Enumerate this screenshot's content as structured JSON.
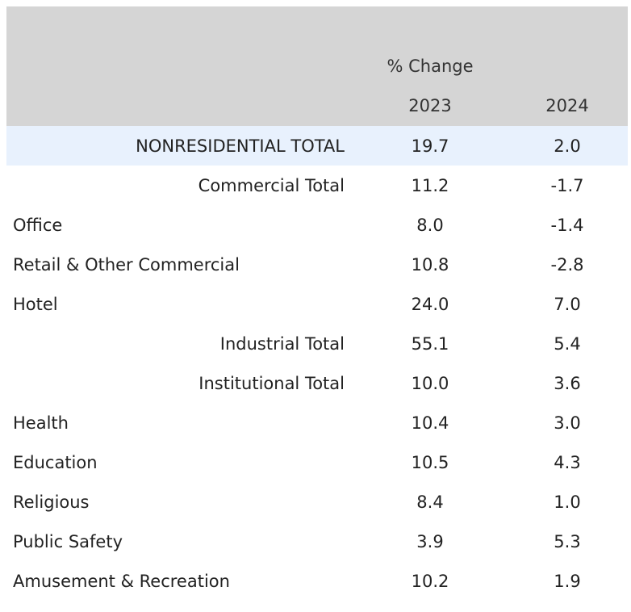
{
  "chart_data": {
    "type": "table",
    "column_group": "% Change",
    "columns": [
      "2023",
      "2024"
    ],
    "rows": [
      {
        "label": "NONRESIDENTIAL TOTAL",
        "values": [
          "19.7",
          "2.0"
        ],
        "style": "total-highlight"
      },
      {
        "label": "Commercial Total",
        "values": [
          "11.2",
          "-1.7"
        ],
        "style": "subtotal"
      },
      {
        "label": "Office",
        "values": [
          "8.0",
          "-1.4"
        ],
        "style": "item"
      },
      {
        "label": "Retail & Other Commercial",
        "values": [
          "10.8",
          "-2.8"
        ],
        "style": "item"
      },
      {
        "label": "Hotel",
        "values": [
          "24.0",
          "7.0"
        ],
        "style": "item"
      },
      {
        "label": "Industrial Total",
        "values": [
          "55.1",
          "5.4"
        ],
        "style": "subtotal"
      },
      {
        "label": "Institutional Total",
        "values": [
          "10.0",
          "3.6"
        ],
        "style": "subtotal"
      },
      {
        "label": "Health",
        "values": [
          "10.4",
          "3.0"
        ],
        "style": "item"
      },
      {
        "label": "Education",
        "values": [
          "10.5",
          "4.3"
        ],
        "style": "item"
      },
      {
        "label": "Religious",
        "values": [
          "8.4",
          "1.0"
        ],
        "style": "item"
      },
      {
        "label": "Public Safety",
        "values": [
          "3.9",
          "5.3"
        ],
        "style": "item"
      },
      {
        "label": "Amusement & Recreation",
        "values": [
          "10.2",
          "1.9"
        ],
        "style": "item"
      }
    ],
    "colors": {
      "header_background": "#d5d5d5",
      "highlight_row_background": "#e8f1fd",
      "text": "#222222"
    }
  }
}
